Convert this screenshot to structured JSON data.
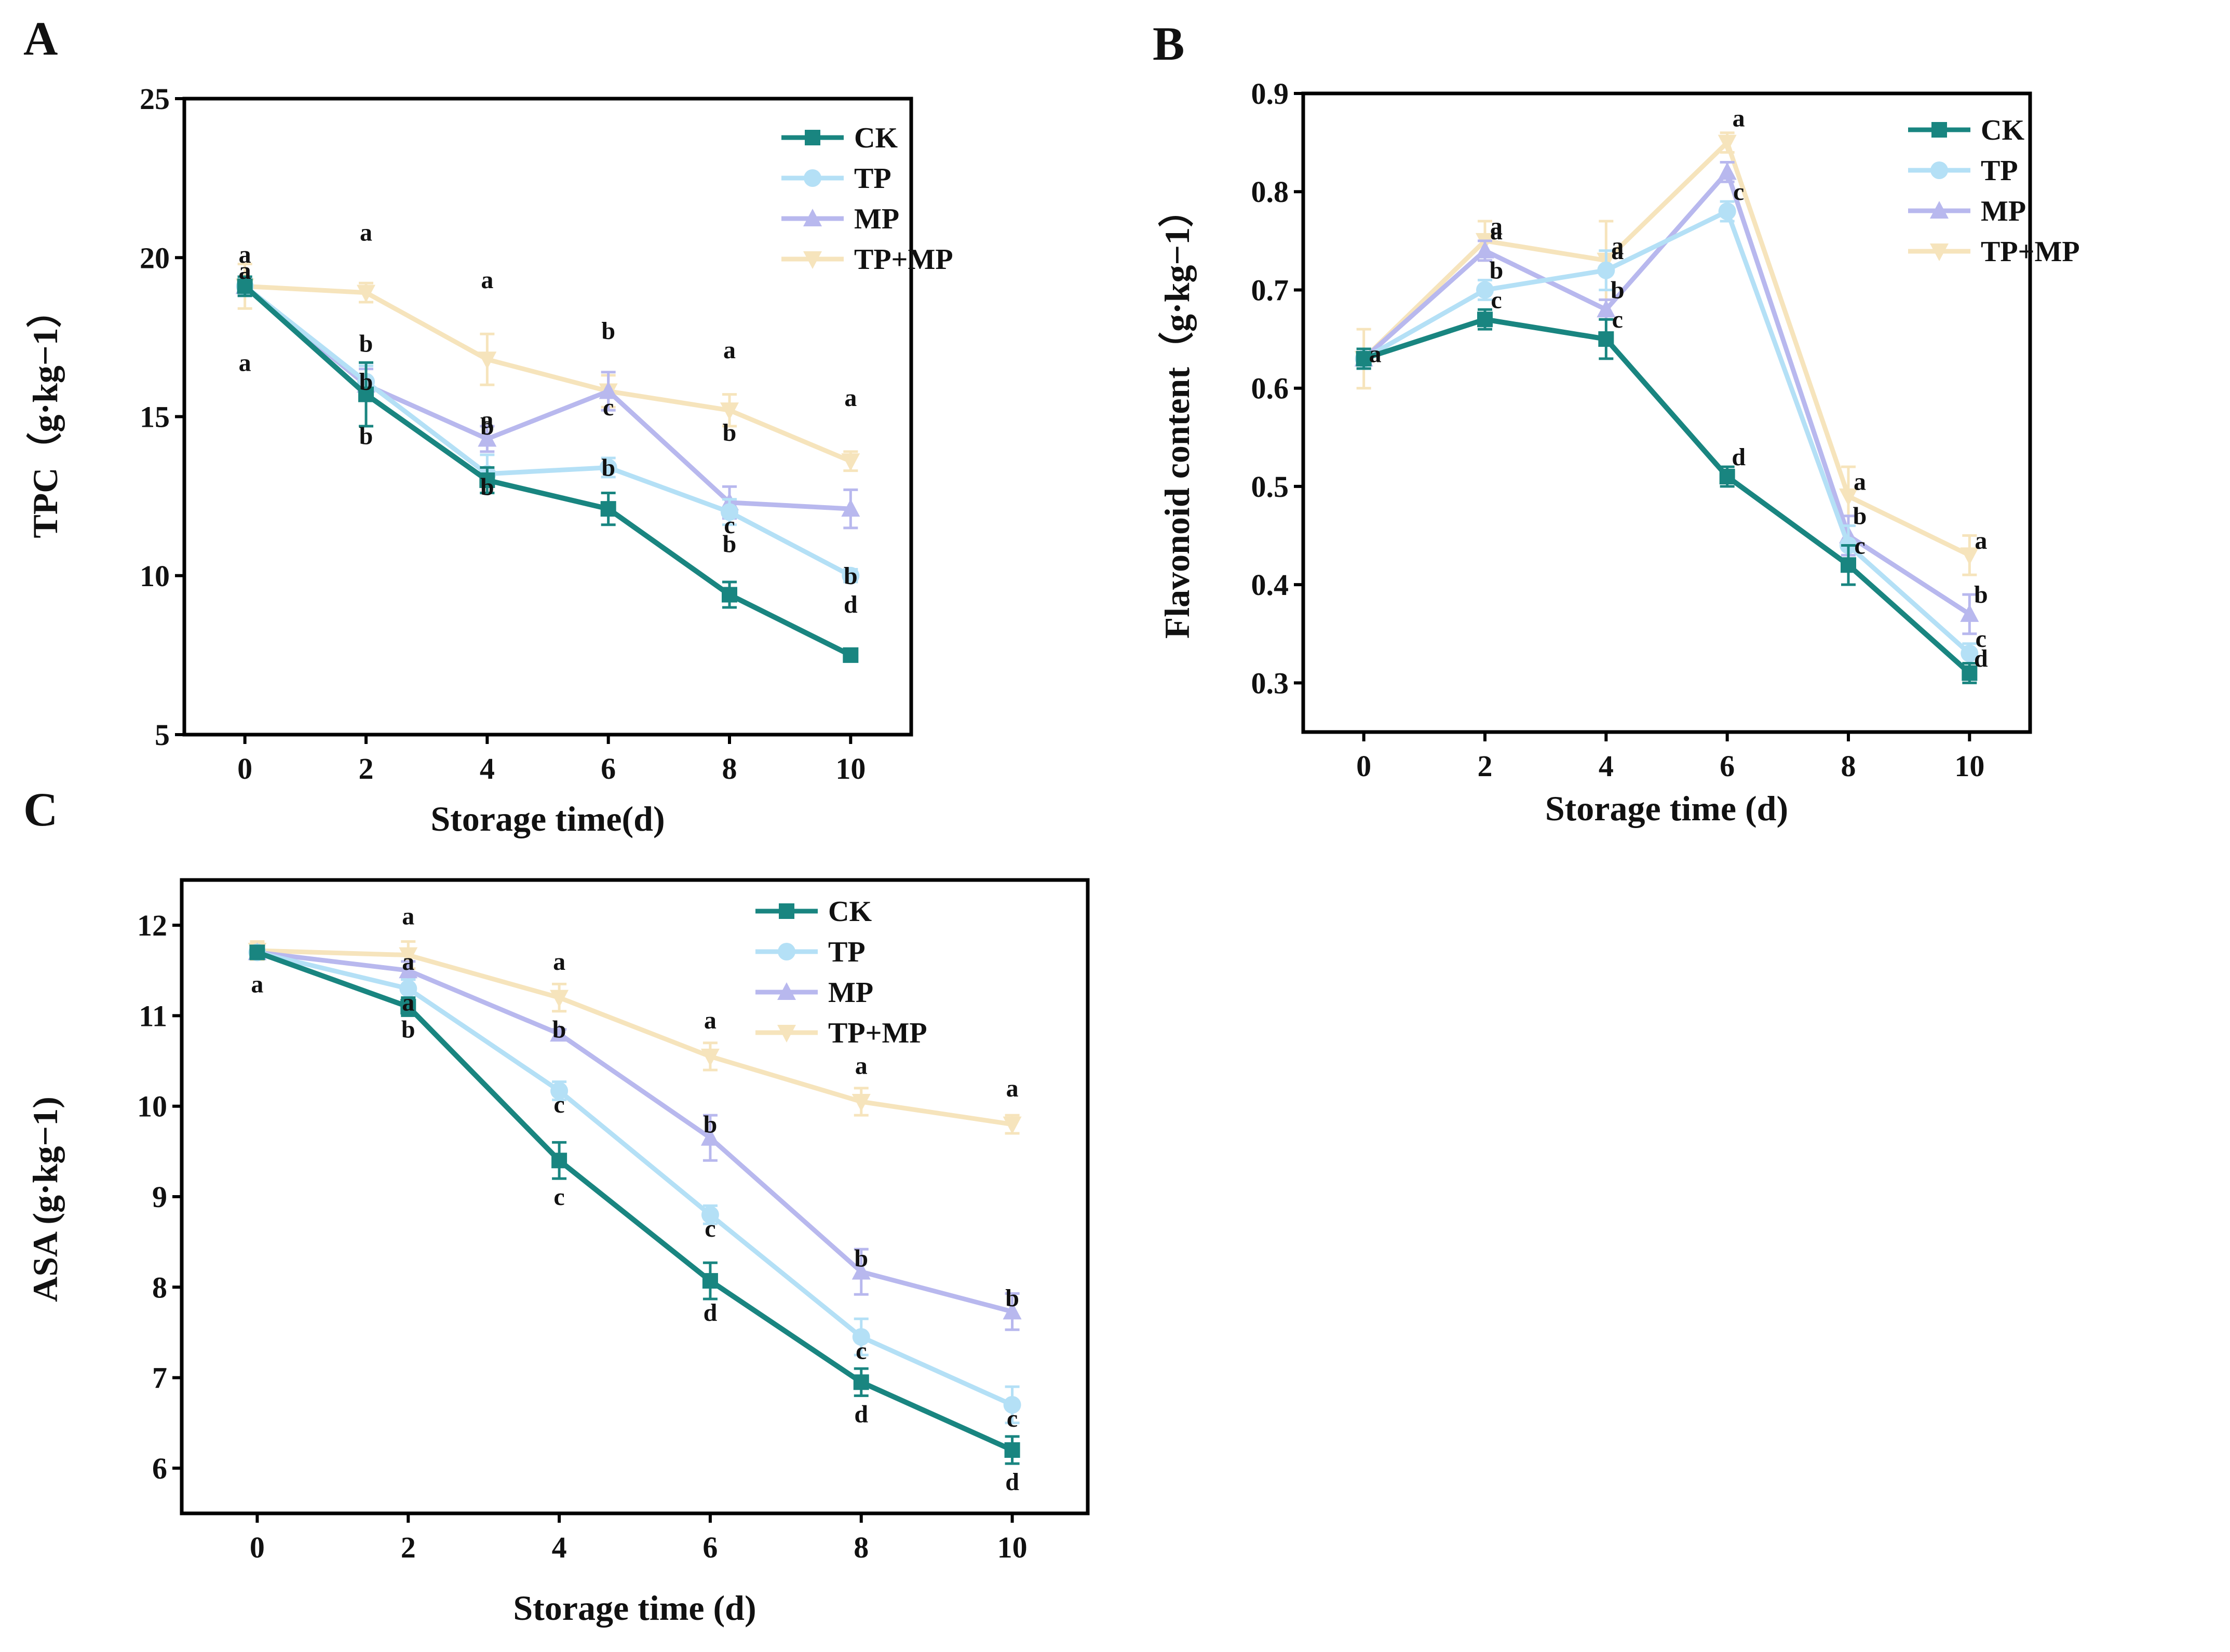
{
  "series_names": [
    "CK",
    "TP",
    "MP",
    "TP+MP"
  ],
  "colors": {
    "CK": "#198580",
    "TP": "#b4e0f6",
    "MP": "#b8b8ee",
    "TP+MP": "#f6e4bc"
  },
  "chart_data": [
    {
      "panel": "A",
      "type": "line",
      "xlabel": "Storage time(d)",
      "ylabel": "TPC（g·kg−1）",
      "x": [
        0,
        2,
        4,
        6,
        8,
        10
      ],
      "xlim": [
        -1,
        11
      ],
      "xticks": [
        "0",
        "2",
        "4",
        "6",
        "8",
        "10"
      ],
      "ylim": [
        5,
        25
      ],
      "yticks": [
        5,
        10,
        15,
        20,
        25
      ],
      "series": [
        {
          "name": "CK",
          "values": [
            19.1,
            15.7,
            13.0,
            12.1,
            9.4,
            7.5
          ],
          "errors": [
            0.3,
            1.0,
            0.4,
            0.5,
            0.4,
            0.15
          ],
          "letters": [
            "a",
            "b",
            "b",
            "",
            "b",
            "d"
          ],
          "letter_y": [
            16.7,
            14.4,
            12.8,
            0,
            11.0,
            9.1
          ]
        },
        {
          "name": "TP",
          "values": [
            19.1,
            16.1,
            13.2,
            13.4,
            12.0,
            10.0
          ],
          "errors": [
            0.3,
            0.5,
            0.6,
            0.3,
            0.4,
            0.2
          ],
          "letters": [
            "a",
            "b",
            "b",
            "b",
            "c",
            "b"
          ],
          "letter_y": [
            19.6,
            17.3,
            14.7,
            13.4,
            11.6,
            10.0
          ]
        },
        {
          "name": "MP",
          "values": [
            19.1,
            16.0,
            14.3,
            15.8,
            12.3,
            12.1
          ],
          "errors": [
            0.3,
            0.5,
            0.4,
            0.6,
            0.5,
            0.6
          ],
          "letters": [
            "a",
            "b",
            "a",
            "c",
            "b",
            ""
          ],
          "letter_y": [
            20.1,
            16.1,
            14.9,
            15.3,
            14.5,
            0
          ]
        },
        {
          "name": "TP+MP",
          "values": [
            19.1,
            18.9,
            16.8,
            15.8,
            15.2,
            13.6
          ],
          "errors": [
            0.7,
            0.3,
            0.8,
            0.5,
            0.5,
            0.3
          ],
          "letters": [
            "",
            "a",
            "a",
            "b",
            "a",
            "a"
          ],
          "letter_y": [
            0,
            20.8,
            19.3,
            17.7,
            17.1,
            15.6
          ]
        }
      ]
    },
    {
      "panel": "B",
      "type": "line",
      "xlabel": "Storage time (d)",
      "ylabel": "Flavonoid content（g·kg−1）",
      "x": [
        0,
        2,
        4,
        6,
        8,
        10
      ],
      "xlim": [
        -1,
        11
      ],
      "xticks": [
        "0",
        "2",
        "4",
        "6",
        "8",
        "10"
      ],
      "ylim": [
        0.25,
        0.9
      ],
      "yticks": [
        0.3,
        0.4,
        0.5,
        0.6,
        0.7,
        0.8,
        0.9
      ],
      "series": [
        {
          "name": "CK",
          "values": [
            0.63,
            0.67,
            0.65,
            0.51,
            0.42,
            0.31
          ],
          "errors": [
            0.01,
            0.01,
            0.02,
            0.01,
            0.02,
            0.01
          ],
          "letters": [
            "",
            "c",
            "c",
            "d",
            "c",
            "d"
          ],
          "letter_y": [
            0,
            0.69,
            0.67,
            0.53,
            0.44,
            0.325
          ]
        },
        {
          "name": "TP",
          "values": [
            0.63,
            0.7,
            0.72,
            0.78,
            0.44,
            0.33
          ],
          "errors": [
            0.01,
            0.01,
            0.02,
            0.01,
            0.02,
            0.01
          ],
          "letters": [
            "",
            "b",
            "a",
            "",
            "",
            "c"
          ],
          "letter_y": [
            0,
            0.72,
            0.74,
            0,
            0,
            0.345
          ]
        },
        {
          "name": "MP",
          "values": [
            0.63,
            0.74,
            0.68,
            0.82,
            0.45,
            0.37
          ],
          "errors": [
            0.01,
            0.01,
            0.01,
            0.01,
            0.02,
            0.02
          ],
          "letters": [
            "",
            "a",
            "b",
            "c",
            "b",
            "b"
          ],
          "letter_y": [
            0,
            0.76,
            0.7,
            0.8,
            0.47,
            0.39
          ]
        },
        {
          "name": "TP+MP",
          "values": [
            0.63,
            0.75,
            0.73,
            0.85,
            0.49,
            0.43
          ],
          "errors": [
            0.03,
            0.02,
            0.04,
            0.01,
            0.03,
            0.02
          ],
          "letters": [
            "a",
            "a",
            "a",
            "a",
            "a",
            "a"
          ],
          "letter_y": [
            0.635,
            0.765,
            0.745,
            0.875,
            0.505,
            0.445
          ]
        }
      ]
    },
    {
      "panel": "C",
      "type": "line",
      "xlabel": "Storage time (d)",
      "ylabel": "ASA (g·kg−1)",
      "x": [
        0,
        2,
        4,
        6,
        8,
        10
      ],
      "xlim": [
        -1,
        11
      ],
      "xticks": [
        "0",
        "2",
        "4",
        "6",
        "8",
        "10"
      ],
      "ylim": [
        5.5,
        12.5
      ],
      "yticks": [
        6,
        7,
        8,
        9,
        10,
        11,
        12
      ],
      "series": [
        {
          "name": "CK",
          "values": [
            11.7,
            11.1,
            9.4,
            8.07,
            6.95,
            6.2
          ],
          "errors": [
            0.05,
            0.1,
            0.2,
            0.2,
            0.15,
            0.15
          ],
          "letters": [
            "a",
            "b",
            "c",
            "d",
            "d",
            "d"
          ],
          "letter_y": [
            11.35,
            10.85,
            9.0,
            7.72,
            6.6,
            5.85
          ]
        },
        {
          "name": "TP",
          "values": [
            11.7,
            11.3,
            10.17,
            8.8,
            7.45,
            6.7
          ],
          "errors": [
            0.05,
            0.1,
            0.1,
            0.1,
            0.2,
            0.2
          ],
          "letters": [
            "",
            "a",
            "c",
            "c",
            "c",
            "c"
          ],
          "letter_y": [
            0,
            11.15,
            10.02,
            8.65,
            7.3,
            6.55
          ]
        },
        {
          "name": "MP",
          "values": [
            11.7,
            11.5,
            10.8,
            9.65,
            8.17,
            7.73
          ],
          "errors": [
            0.05,
            0.1,
            0.05,
            0.25,
            0.25,
            0.2
          ],
          "letters": [
            "",
            "a",
            "b",
            "b",
            "b",
            "b"
          ],
          "letter_y": [
            0,
            11.6,
            10.85,
            9.8,
            8.32,
            7.88
          ]
        },
        {
          "name": "TP+MP",
          "values": [
            11.72,
            11.67,
            11.2,
            10.55,
            10.05,
            9.8
          ],
          "errors": [
            0.1,
            0.15,
            0.15,
            0.15,
            0.15,
            0.1
          ],
          "letters": [
            "",
            "a",
            "a",
            "a",
            "a",
            "a"
          ],
          "letter_y": [
            0,
            12.1,
            11.6,
            10.95,
            10.45,
            10.2
          ]
        }
      ]
    }
  ]
}
